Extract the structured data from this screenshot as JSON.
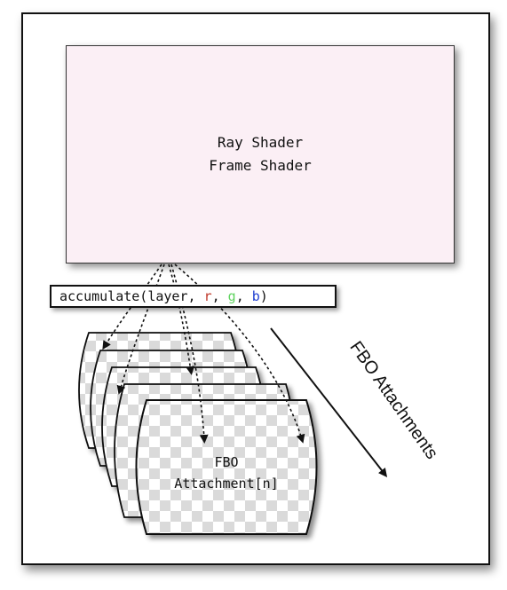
{
  "shader_box": {
    "line1": "Ray Shader",
    "line2": "Frame Shader"
  },
  "call": {
    "func": "accumulate(layer, ",
    "r": "r",
    "sep1": ", ",
    "g": "g",
    "sep2": ", ",
    "b": "b",
    "close": ")"
  },
  "colors": {
    "r": "#c0392b",
    "g": "#5fd35f",
    "b": "#1f3fd1",
    "shader_fill": "#fbeff5"
  },
  "fbo": {
    "label_line1": "FBO",
    "label_line2": "Attachment[n]"
  },
  "side_label": "FBO Attachments"
}
